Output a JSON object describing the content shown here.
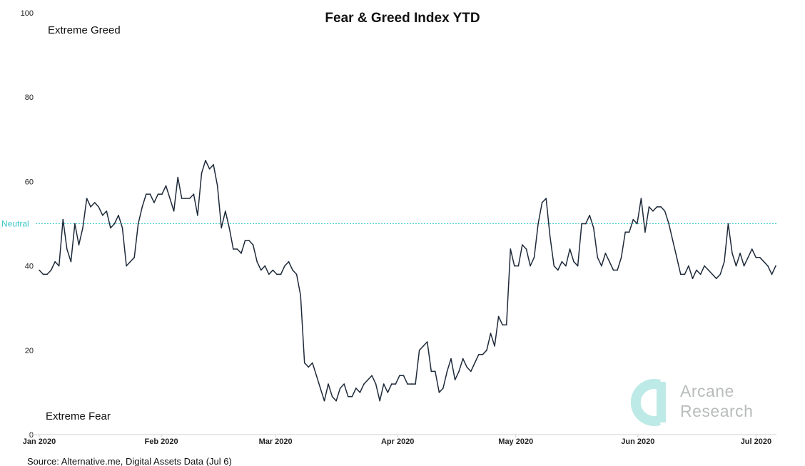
{
  "chart_data": {
    "type": "line",
    "title": "Fear & Greed Index YTD",
    "ylim": [
      0,
      100
    ],
    "yticks": [
      0,
      20,
      40,
      60,
      80,
      100
    ],
    "xticks": [
      {
        "label": "Jan 2020",
        "day": 0
      },
      {
        "label": "Feb 2020",
        "day": 31
      },
      {
        "label": "Mar 2020",
        "day": 60
      },
      {
        "label": "Apr 2020",
        "day": 91
      },
      {
        "label": "May 2020",
        "day": 121
      },
      {
        "label": "Jun 2020",
        "day": 152
      },
      {
        "label": "Jul 2020",
        "day": 182
      }
    ],
    "xdomain_days": [
      0,
      187
    ],
    "reference_line": {
      "label": "Neutral",
      "value": 50,
      "color": "#3cc7c7"
    },
    "annotations": {
      "top": "Extreme Greed",
      "bottom": "Extreme Fear"
    },
    "line_color": "#1e2a3a",
    "series": [
      {
        "values": [
          39,
          38,
          38,
          39,
          41,
          40,
          51,
          44,
          41,
          50,
          45,
          49,
          56,
          54,
          55,
          54,
          52,
          53,
          49,
          50,
          52,
          49,
          40,
          41,
          42,
          50,
          54,
          57,
          57,
          55,
          57,
          57,
          59,
          56,
          53,
          61,
          56,
          56,
          56,
          57,
          52,
          62,
          65,
          63,
          64,
          59,
          49,
          53,
          49,
          44,
          44,
          43,
          46,
          46,
          45,
          41,
          39,
          40,
          38,
          39,
          38,
          38,
          40,
          41,
          39,
          38,
          33,
          17,
          16,
          17,
          14,
          11,
          8,
          12,
          9,
          8,
          11,
          12,
          9,
          9,
          11,
          10,
          12,
          13,
          14,
          12,
          8,
          12,
          10,
          12,
          12,
          14,
          14,
          12,
          12,
          12,
          20,
          21,
          22,
          15,
          15,
          10,
          11,
          15,
          18,
          13,
          15,
          18,
          16,
          15,
          17,
          19,
          19,
          20,
          24,
          21,
          28,
          26,
          26,
          44,
          40,
          40,
          45,
          44,
          40,
          42,
          50,
          55,
          56,
          47,
          40,
          39,
          41,
          40,
          44,
          41,
          40,
          50,
          50,
          52,
          49,
          42,
          40,
          43,
          41,
          39,
          39,
          42,
          48,
          48,
          51,
          50,
          56,
          48,
          54,
          53,
          54,
          54,
          53,
          50,
          46,
          42,
          38,
          38,
          40,
          37,
          39,
          38,
          40,
          39,
          38,
          37,
          38,
          41,
          50,
          43,
          40,
          43,
          40,
          42,
          44,
          42,
          42,
          41,
          40,
          38,
          40
        ]
      }
    ]
  },
  "source": "Source: Alternative.me, Digital Assets Data (Jul 6)",
  "watermark": {
    "line1": "Arcane",
    "line2": "Research",
    "logo_color": "#bde9e6",
    "text_color": "#b9bcbc"
  }
}
